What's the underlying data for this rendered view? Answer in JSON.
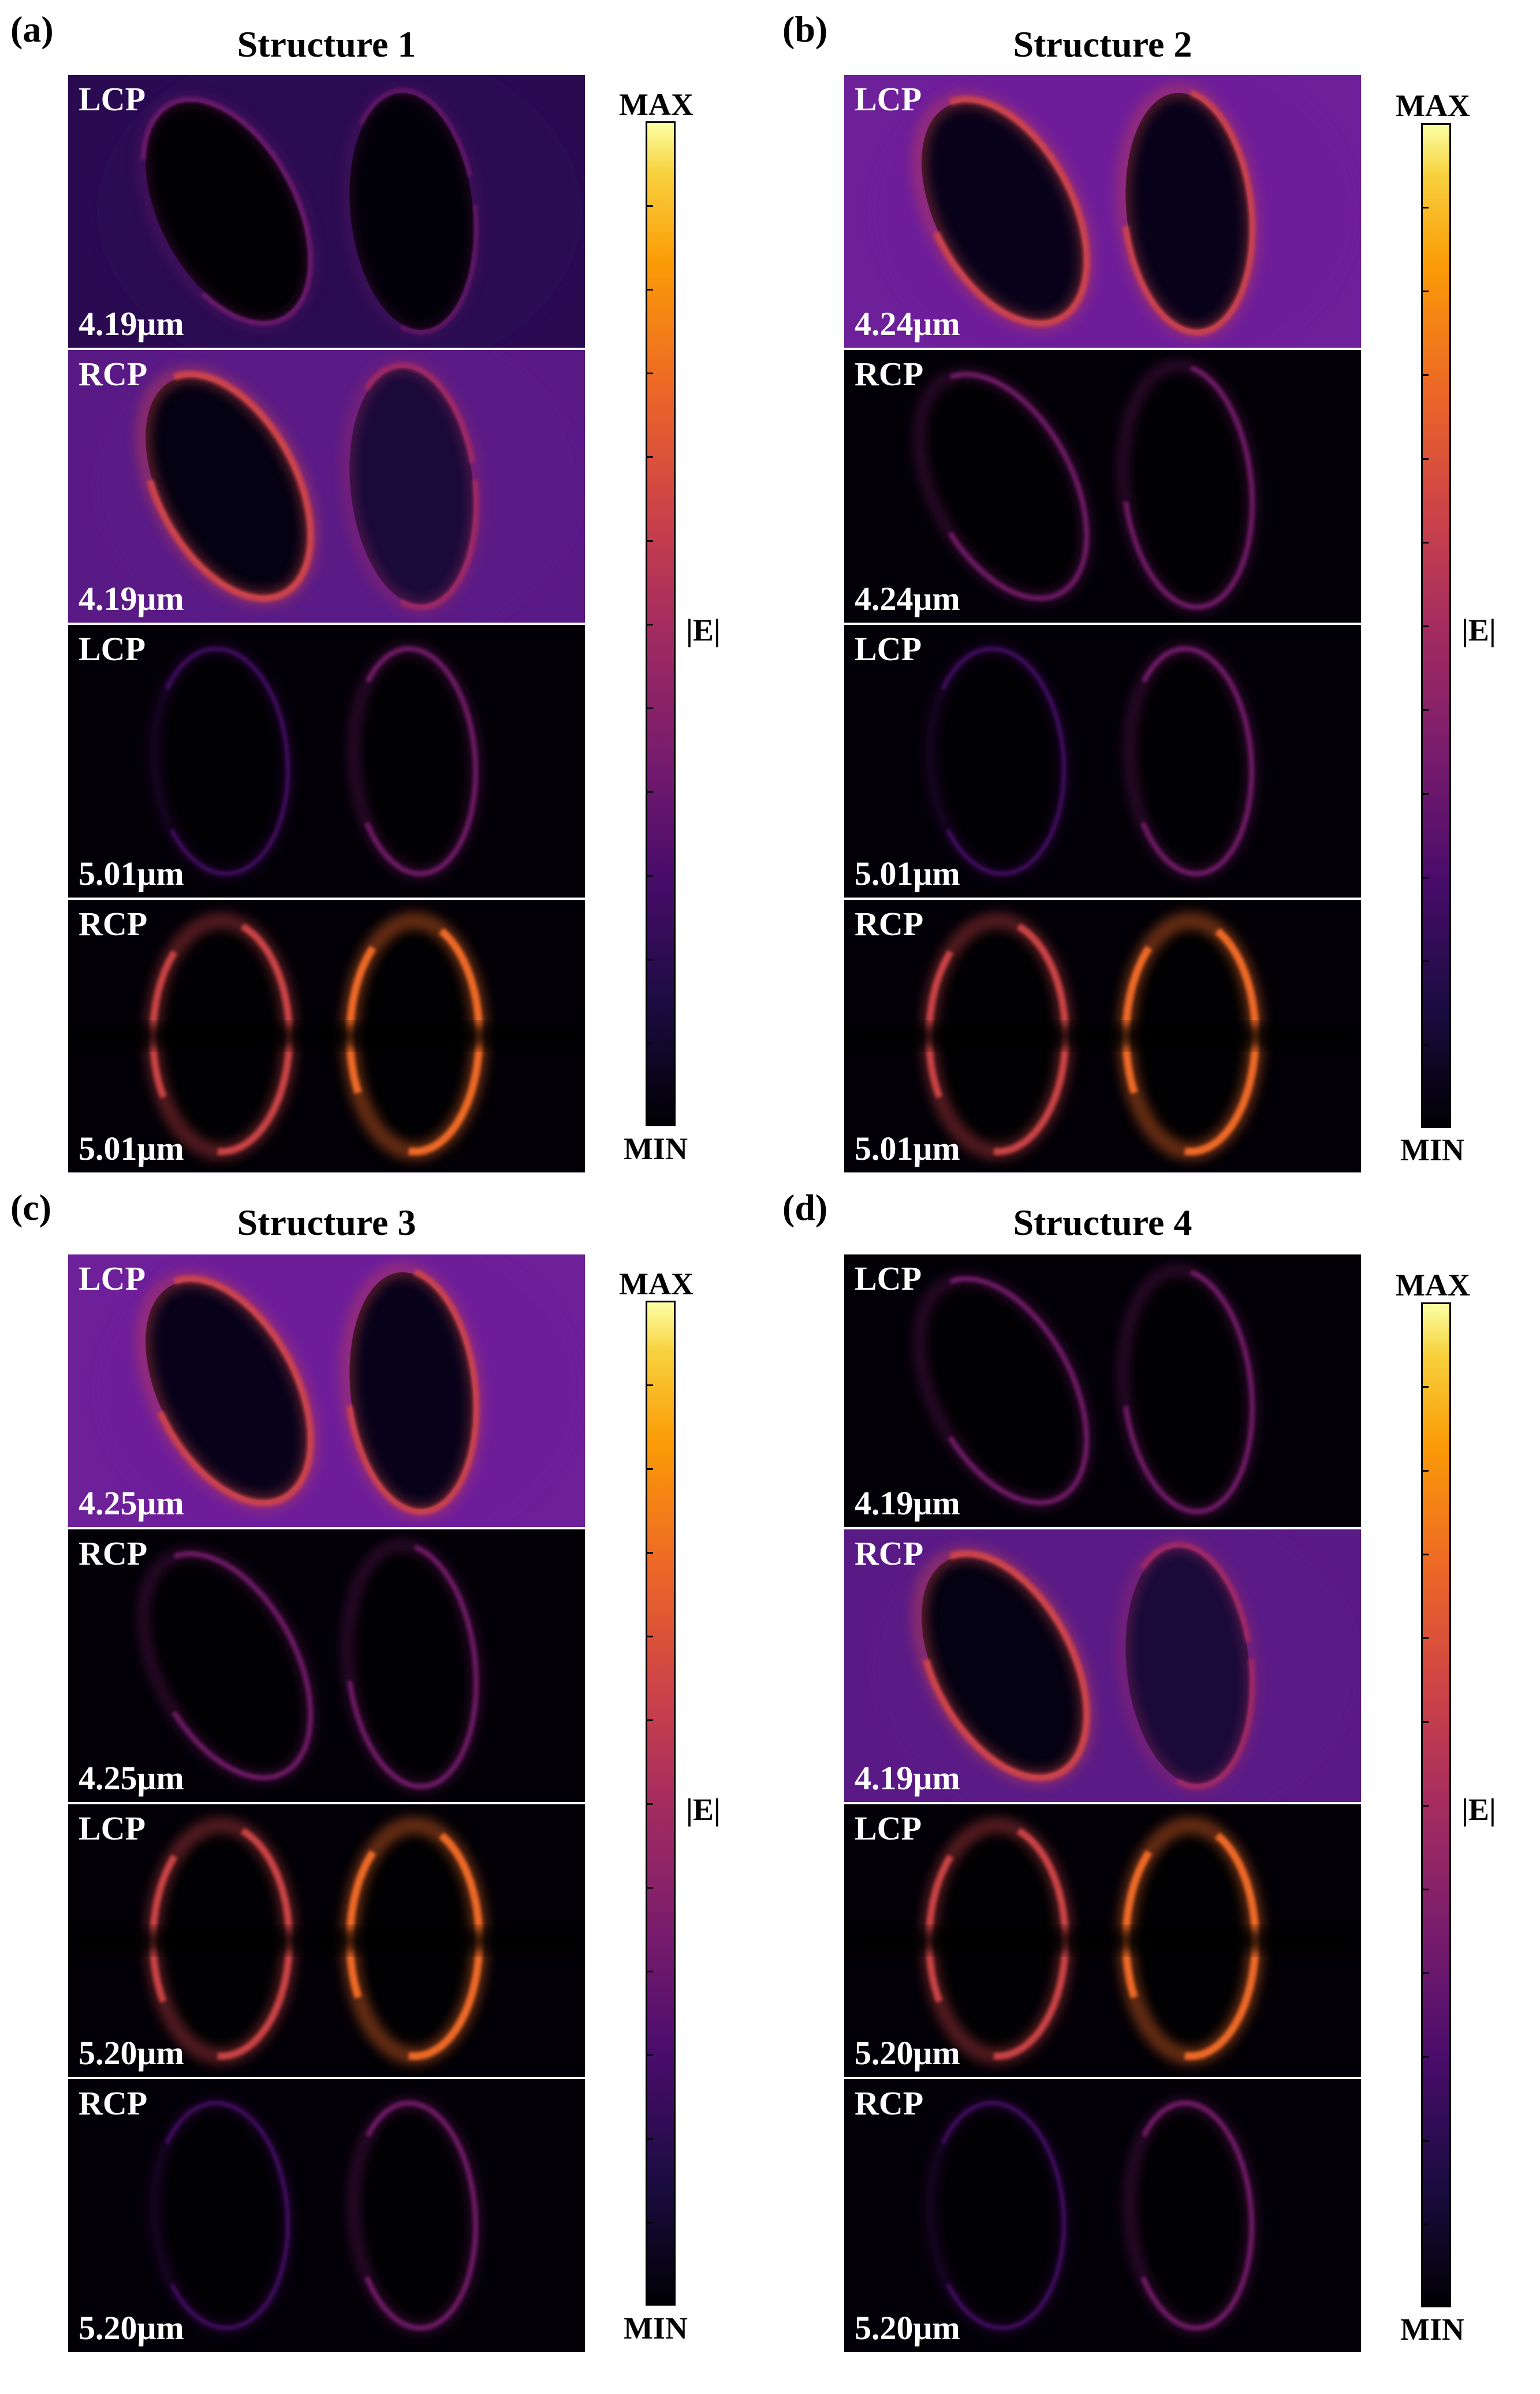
{
  "panels": [
    {
      "label": "(a)",
      "title": "Structure 1",
      "cells": [
        {
          "pol": "LCP",
          "wl": "4.19μm"
        },
        {
          "pol": "RCP",
          "wl": "4.19μm"
        },
        {
          "pol": "LCP",
          "wl": "5.01μm"
        },
        {
          "pol": "RCP",
          "wl": "5.01μm"
        }
      ],
      "colorbar": {
        "max": "MAX",
        "min": "MIN",
        "quantity": "|E|"
      }
    },
    {
      "label": "(b)",
      "title": "Structure 2",
      "cells": [
        {
          "pol": "LCP",
          "wl": "4.24μm"
        },
        {
          "pol": "RCP",
          "wl": "4.24μm"
        },
        {
          "pol": "LCP",
          "wl": "5.01μm"
        },
        {
          "pol": "RCP",
          "wl": "5.01μm"
        }
      ],
      "colorbar": {
        "max": "MAX",
        "min": "MIN",
        "quantity": "|E|"
      }
    },
    {
      "label": "(c)",
      "title": "Structure 3",
      "cells": [
        {
          "pol": "LCP",
          "wl": "4.25μm"
        },
        {
          "pol": "RCP",
          "wl": "4.25μm"
        },
        {
          "pol": "LCP",
          "wl": "5.20μm"
        },
        {
          "pol": "RCP",
          "wl": "5.20μm"
        }
      ],
      "colorbar": {
        "max": "MAX",
        "min": "MIN",
        "quantity": "|E|"
      }
    },
    {
      "label": "(d)",
      "title": "Structure 4",
      "cells": [
        {
          "pol": "LCP",
          "wl": "4.19μm"
        },
        {
          "pol": "RCP",
          "wl": "4.19μm"
        },
        {
          "pol": "LCP",
          "wl": "5.20μm"
        },
        {
          "pol": "RCP",
          "wl": "5.20μm"
        }
      ],
      "colorbar": {
        "max": "MAX",
        "min": "MIN",
        "quantity": "|E|"
      }
    }
  ],
  "colormap": [
    "#000004",
    "#1b0c41",
    "#4a0c6b",
    "#781c6d",
    "#a52c60",
    "#cf4446",
    "#ed6925",
    "#fb9b06",
    "#f7d13d",
    "#fcffa4"
  ]
}
